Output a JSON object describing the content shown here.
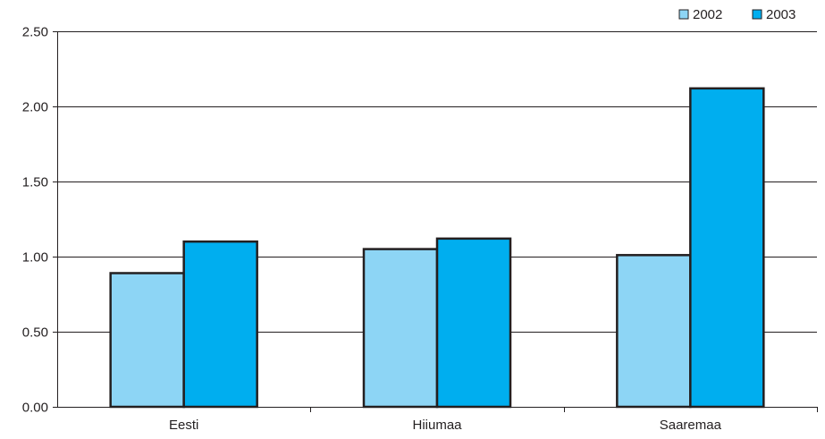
{
  "chart_data": {
    "type": "bar",
    "categories": [
      "Eesti",
      "Hiiumaa",
      "Saaremaa"
    ],
    "series": [
      {
        "name": "2002",
        "values": [
          0.89,
          1.05,
          1.01
        ],
        "color": "#8dd5f5"
      },
      {
        "name": "2003",
        "values": [
          1.1,
          1.12,
          2.12
        ],
        "color": "#00aeef"
      }
    ],
    "ylim": [
      0,
      2.5
    ],
    "yticks": [
      "0.00",
      "0.50",
      "1.00",
      "1.50",
      "2.00",
      "2.50"
    ],
    "ytick_values": [
      0,
      0.5,
      1.0,
      1.5,
      2.0,
      2.5
    ],
    "grid": true,
    "legend_position": "top-right",
    "title": "",
    "xlabel": "",
    "ylabel": ""
  }
}
